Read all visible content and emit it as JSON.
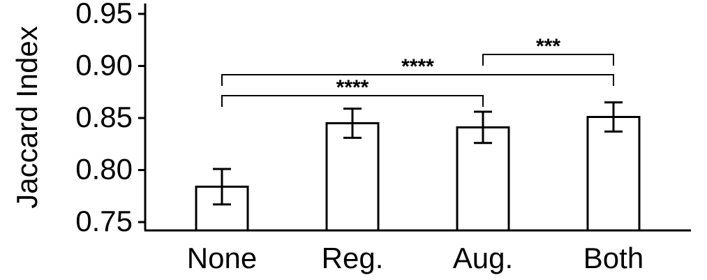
{
  "chart_data": {
    "type": "bar",
    "ylabel": "Jaccard Index",
    "categories": [
      "None",
      "Reg.",
      "Aug.",
      "Both"
    ],
    "values": [
      0.784,
      0.845,
      0.841,
      0.851
    ],
    "errors": [
      0.017,
      0.014,
      0.015,
      0.014
    ],
    "color": "#ffffff",
    "ylim": [
      0.742,
      0.96
    ],
    "yticks": [
      0.75,
      {
        "value": 0.8,
        "label": "0.80"
      },
      0.85,
      {
        "value": 0.9,
        "label": "0.90"
      },
      0.95
    ],
    "annotations": [
      {
        "text": "****",
        "pair": [
          "None",
          "Aug."
        ]
      },
      {
        "text": "****",
        "pair": [
          "None",
          "Both"
        ]
      },
      {
        "text": "***",
        "pair": [
          "Aug.",
          "Both"
        ]
      }
    ]
  }
}
